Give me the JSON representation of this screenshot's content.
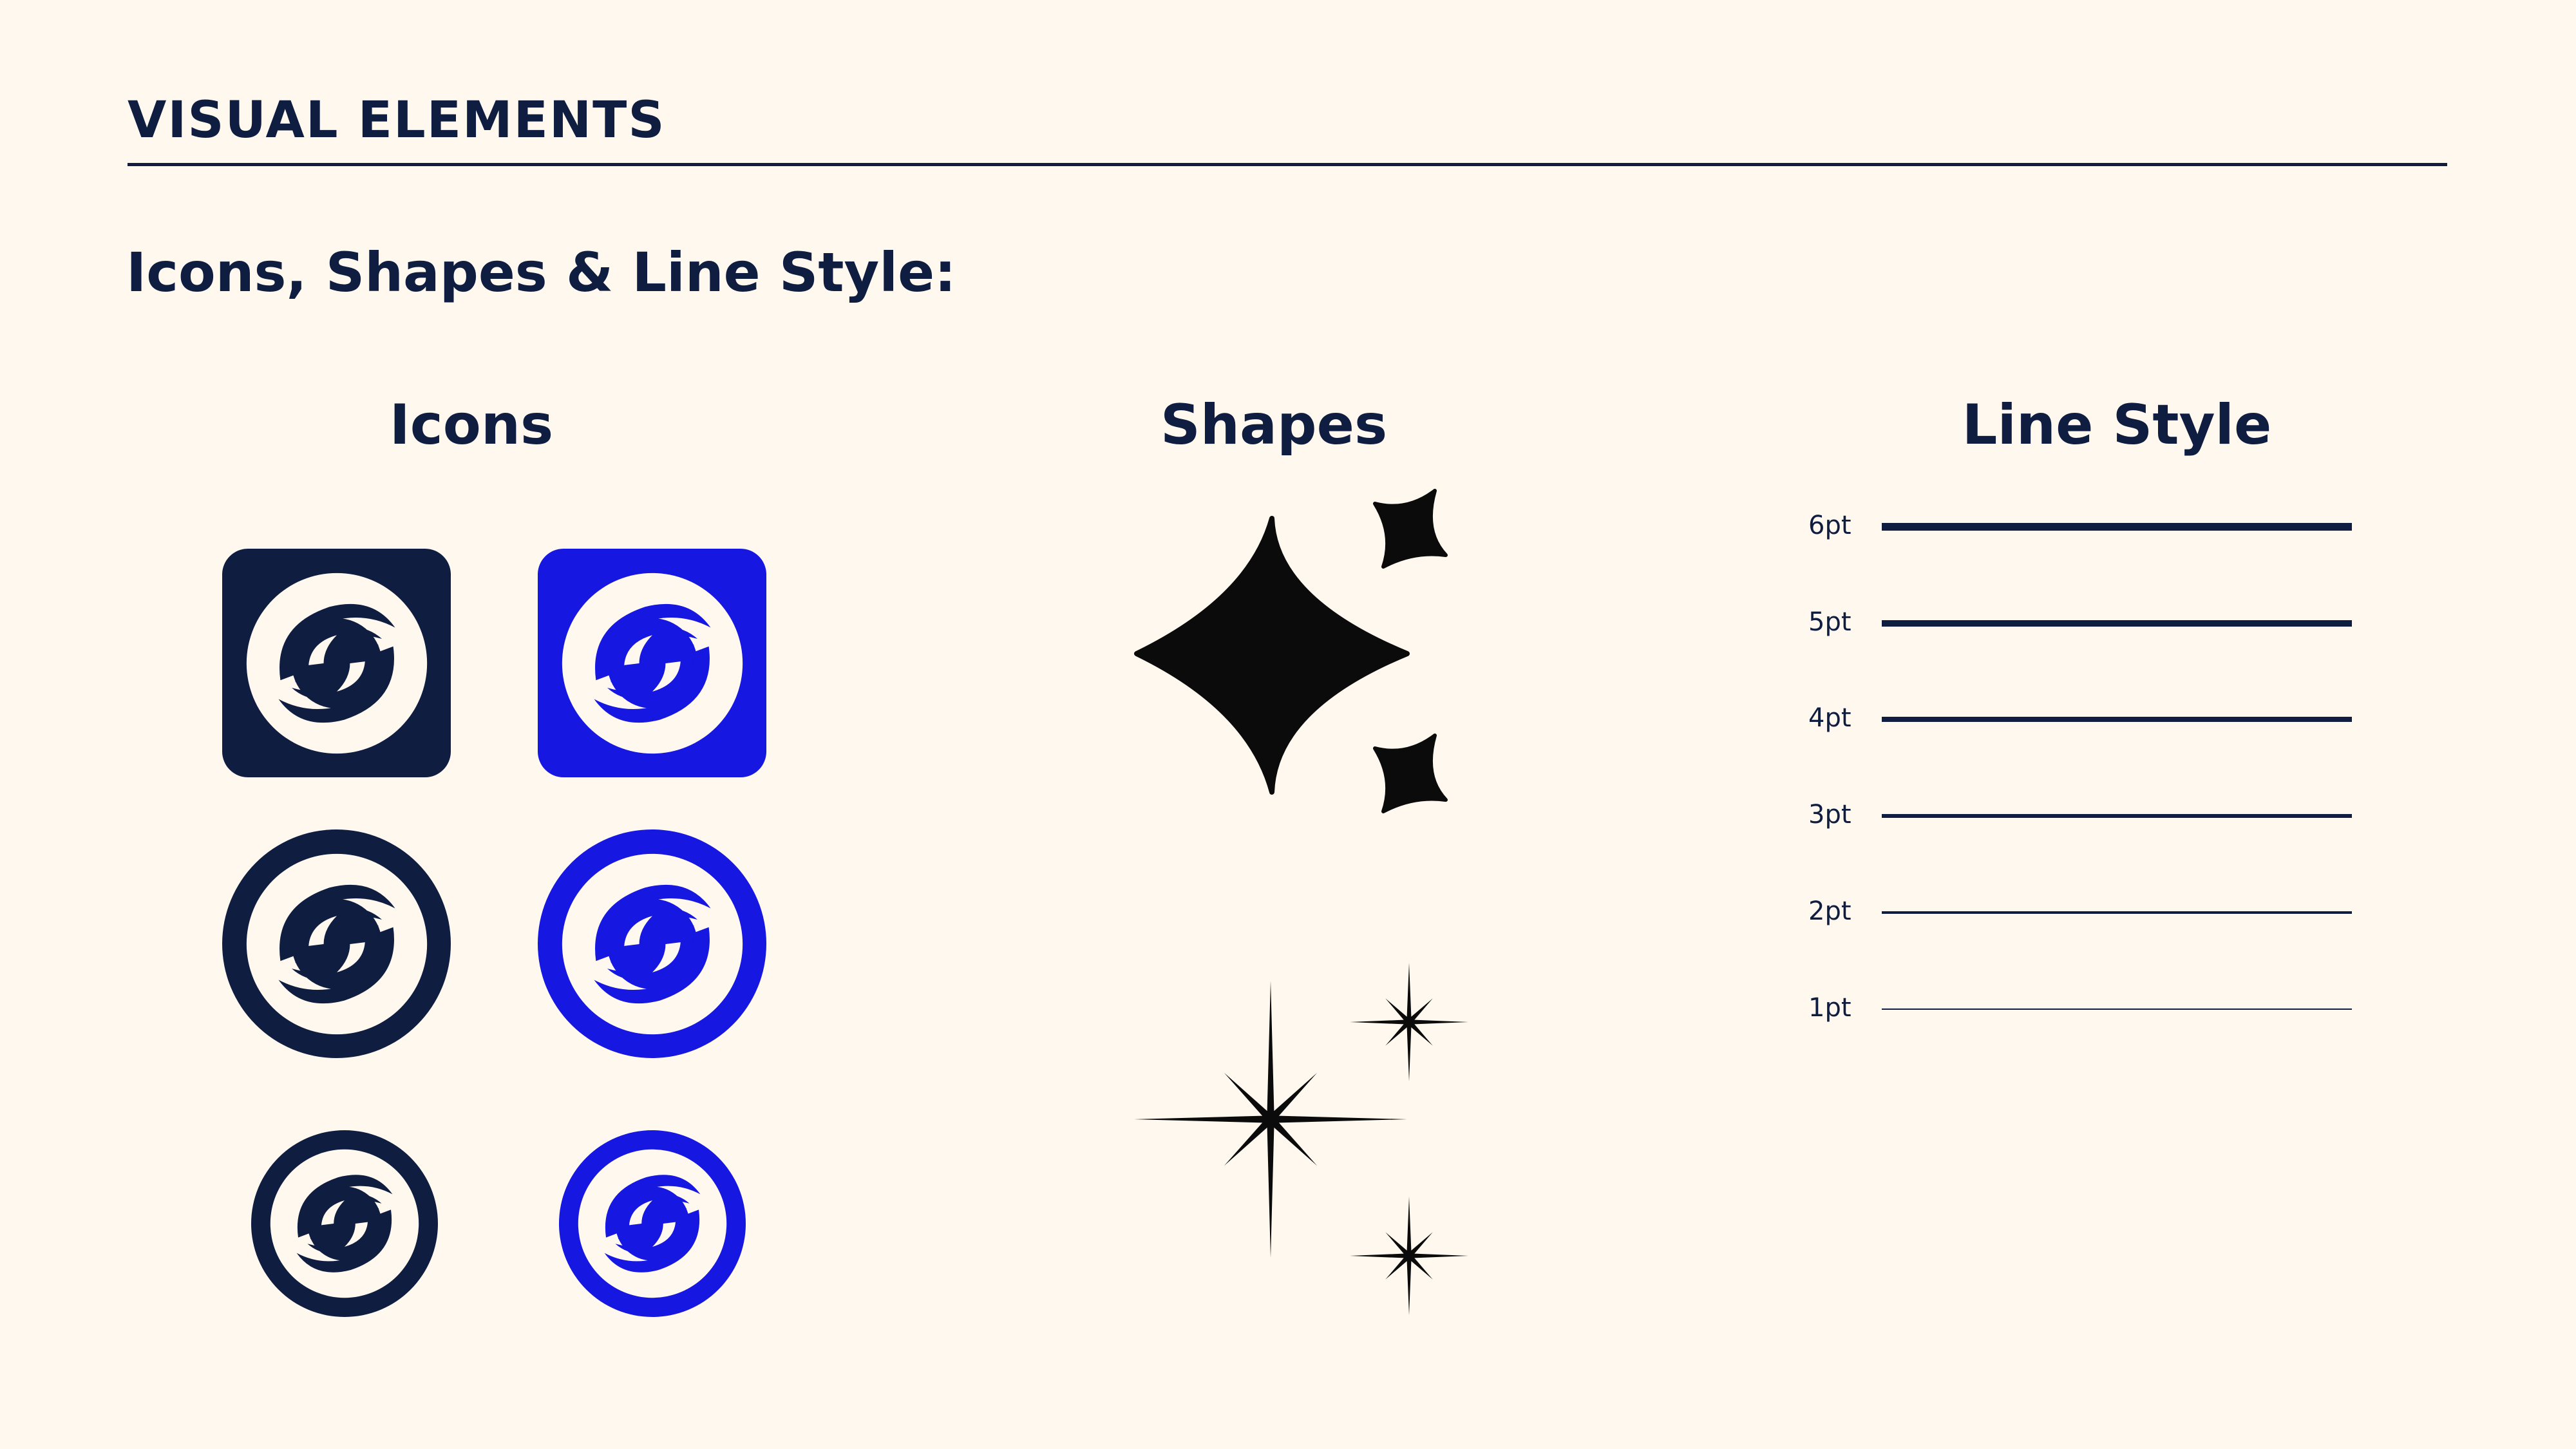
{
  "header": {
    "title": "Visual Elements"
  },
  "subtitle": "Icons, Shapes & Line Style:",
  "columns": {
    "icons": "Icons",
    "shapes": "Shapes",
    "line_style": "Line Style"
  },
  "colors": {
    "background": "#fef8ef",
    "navy": "#0f1d40",
    "blue": "#1717e2",
    "cream": "#fef8ef",
    "black": "#0b0b0b"
  },
  "icons": [
    {
      "name": "swirl-icon-navy-rounded-square",
      "variant": "rounded-square",
      "color": "navy"
    },
    {
      "name": "swirl-icon-blue-rounded-square",
      "variant": "rounded-square",
      "color": "blue"
    },
    {
      "name": "swirl-icon-navy-circle-badge",
      "variant": "circle-badge",
      "color": "navy"
    },
    {
      "name": "swirl-icon-blue-circle-badge",
      "variant": "circle-badge",
      "color": "blue"
    },
    {
      "name": "swirl-icon-navy-mark",
      "variant": "mark-only",
      "color": "navy"
    },
    {
      "name": "swirl-icon-blue-mark",
      "variant": "mark-only",
      "color": "blue"
    }
  ],
  "shapes": [
    {
      "name": "four-point-sparkle-group"
    },
    {
      "name": "eight-point-star-group"
    }
  ],
  "line_styles": [
    {
      "label": "6pt",
      "weight": 6
    },
    {
      "label": "5pt",
      "weight": 5
    },
    {
      "label": "4pt",
      "weight": 4
    },
    {
      "label": "3pt",
      "weight": 3
    },
    {
      "label": "2pt",
      "weight": 2
    },
    {
      "label": "1pt",
      "weight": 1
    }
  ]
}
